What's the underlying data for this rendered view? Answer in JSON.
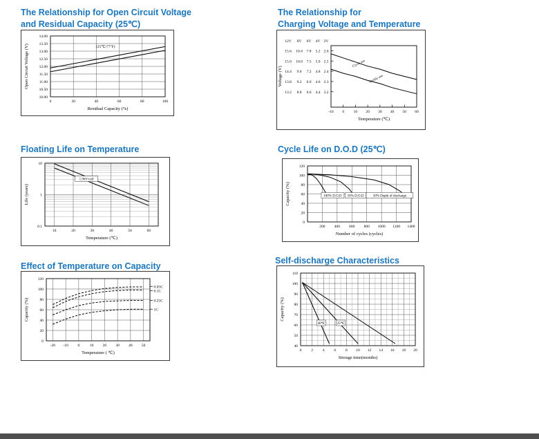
{
  "colors": {
    "title_blue": "#1b76bc",
    "footer_bar": "#4f4f4f"
  },
  "chart_data": [
    {
      "type": "line",
      "title": "The Relationship for Open Circuit Voltage",
      "title2": "and Residual Capacity (25℃)",
      "xlabel": "Residual Capacity (%)",
      "ylabel": "Open Circuit Voltage (V)",
      "xlim": [
        0,
        100
      ],
      "ylim": [
        10,
        14
      ],
      "xticks": {
        "values": [
          0,
          20,
          40,
          60,
          80,
          100
        ],
        "labels": [
          "0",
          "20",
          "40",
          "60",
          "80",
          "100"
        ]
      },
      "yticks": {
        "values": [
          14,
          13.5,
          13,
          12.5,
          12,
          11.5,
          11,
          10.5,
          10
        ],
        "labels": [
          "14.00",
          "13.50",
          "13.00",
          "12.50",
          "12.00",
          "11.50",
          "11.00",
          "10.50",
          "10.00"
        ]
      },
      "xgrid": [
        20,
        40,
        60,
        80
      ],
      "ygrid": [
        10.5,
        11,
        11.5,
        12,
        12.5,
        13,
        13.5
      ],
      "series": [
        {
          "points": [
            [
              0,
              11.9
            ],
            [
              100,
              13.3
            ]
          ]
        },
        {
          "points": [
            [
              0,
              11.65
            ],
            [
              100,
              13.05
            ]
          ]
        }
      ],
      "annotations": [
        {
          "x": 48,
          "y": 13.3,
          "text": "(25℃/77°F)",
          "fs": 5.5
        }
      ],
      "layout": {
        "margins": {
          "l": 42,
          "r": 12,
          "t": 8,
          "b": 27
        }
      }
    },
    {
      "type": "line",
      "title": "The Relationship for",
      "title2": "Charging Voltage and Temperature",
      "xlabel": "Temperature (℃)",
      "ylabel": "Voltage (V)",
      "xlim": [
        -10,
        60
      ],
      "ylim": [
        2.05,
        2.65
      ],
      "xticks": {
        "values": [
          -10,
          0,
          10,
          20,
          30,
          40,
          50,
          60
        ],
        "labels": [
          "-10",
          "0",
          "10",
          "20",
          "30",
          "40",
          "50",
          "60"
        ]
      },
      "ytable": {
        "headers": [
          "12V",
          "8V",
          "6V",
          "4V",
          "2V"
        ],
        "colx": [
          16,
          32,
          46,
          59,
          71
        ],
        "row_values": [
          2.6,
          2.5,
          2.4,
          2.3,
          2.2
        ],
        "rows": [
          [
            "15.6",
            "10.4",
            "7.8",
            "5.2",
            "2.6"
          ],
          [
            "15.0",
            "10.0",
            "7.5",
            "5.0",
            "2.5"
          ],
          [
            "14.4",
            "9.6",
            "7.2",
            "4.8",
            "2.4"
          ],
          [
            "13.8",
            "9.2",
            "6.9",
            "4.6",
            "2.3"
          ],
          [
            "13.2",
            "8.8",
            "6.6",
            "4.4",
            "2.2"
          ]
        ]
      },
      "ytick_marks": [
        2.6,
        2.5,
        2.4,
        2.3,
        2.2
      ],
      "xtick_marks": [
        0,
        10,
        20,
        30,
        40,
        50
      ],
      "series": [
        {
          "name": "Cycle use",
          "points": [
            [
              -10,
              2.57
            ],
            [
              0,
              2.53
            ],
            [
              10,
              2.49
            ],
            [
              20,
              2.45
            ],
            [
              30,
              2.42
            ],
            [
              40,
              2.38
            ],
            [
              50,
              2.35
            ],
            [
              60,
              2.32
            ]
          ]
        },
        {
          "name": "Trickle use",
          "points": [
            [
              -10,
              2.42
            ],
            [
              0,
              2.38
            ],
            [
              10,
              2.35
            ],
            [
              20,
              2.31
            ],
            [
              30,
              2.28
            ],
            [
              40,
              2.24
            ],
            [
              50,
              2.21
            ],
            [
              60,
              2.18
            ]
          ]
        }
      ],
      "annotations": [
        {
          "x": 13,
          "y": 2.48,
          "text": "Cycle use",
          "rot": -27
        },
        {
          "x": 27,
          "y": 2.33,
          "text": "Trickle use",
          "rot": -27
        }
      ],
      "layout": {
        "margins": {
          "l": 78,
          "r": 12,
          "t": 22,
          "b": 32
        },
        "ylabel_x": 6
      }
    },
    {
      "type": "line",
      "title": "Floating Life on Temperature",
      "xlabel": "Temperature (℃)",
      "ylabel": "Life (years)",
      "xlim": [
        5,
        65
      ],
      "ylim": [
        0.1,
        10
      ],
      "ylog": true,
      "xticks": {
        "values": [
          10,
          20,
          30,
          40,
          50,
          60
        ],
        "labels": [
          "10",
          "20",
          "30",
          "40",
          "50",
          "60"
        ]
      },
      "yticks": {
        "values": [
          10,
          1,
          0.1
        ],
        "labels": [
          "10",
          "1",
          "0.1"
        ]
      },
      "xgrid": [
        10,
        20,
        30,
        40,
        50,
        60
      ],
      "ygrid": [
        1
      ],
      "ygrid_minor": [
        9,
        8,
        7,
        6,
        5,
        4,
        3,
        2,
        0.9,
        0.8,
        0.7,
        0.6,
        0.5,
        0.4,
        0.3,
        0.2
      ],
      "series": [
        {
          "points": [
            [
              10,
              9.5
            ],
            [
              60,
              0.6
            ]
          ]
        },
        {
          "points": [
            [
              10,
              7
            ],
            [
              60,
              0.45
            ]
          ]
        }
      ],
      "annotations": [
        {
          "x": 27,
          "y": 3.2,
          "text": "1.96V/cell",
          "box": true
        }
      ],
      "layout": {
        "margins": {
          "l": 34,
          "r": 16,
          "t": 8,
          "b": 28
        }
      }
    },
    {
      "type": "line",
      "title": "Cycle Life on D.O.D (25℃)",
      "xlabel": "Number of cycles (cycles)",
      "ylabel": "Capacity (%)",
      "xlim": [
        0,
        1400
      ],
      "ylim": [
        0,
        120
      ],
      "xticks": {
        "values": [
          200,
          400,
          600,
          800,
          1000,
          1200,
          1400
        ],
        "labels": [
          "200",
          "400",
          "600",
          "800",
          "1000",
          "1200",
          "1400"
        ]
      },
      "yticks": {
        "values": [
          0,
          20,
          40,
          60,
          80,
          100,
          120
        ],
        "labels": [
          "0",
          "20",
          "40",
          "60",
          "80",
          "100",
          "120"
        ]
      },
      "xgrid": [
        200,
        400,
        600,
        800,
        1000,
        1200
      ],
      "ygrid": [
        20,
        40,
        60,
        80,
        100
      ],
      "series": [
        {
          "name": "100% D.O.D",
          "points": [
            [
              0,
              102
            ],
            [
              60,
              101
            ],
            [
              120,
              93
            ],
            [
              180,
              80
            ],
            [
              230,
              67
            ],
            [
              265,
              57
            ]
          ]
        },
        {
          "name": "50% D.O.D",
          "points": [
            [
              0,
              103
            ],
            [
              150,
              101
            ],
            [
              300,
              96
            ],
            [
              450,
              86
            ],
            [
              560,
              71
            ],
            [
              625,
              58
            ]
          ]
        },
        {
          "name": "30% Depth of discharge",
          "points": [
            [
              0,
              103
            ],
            [
              300,
              101
            ],
            [
              600,
              97
            ],
            [
              900,
              90
            ],
            [
              1100,
              80
            ],
            [
              1250,
              66
            ],
            [
              1310,
              58
            ]
          ]
        }
      ],
      "annotations": [
        {
          "x": 340,
          "y": 57,
          "text": "100% D.O.D",
          "box": true
        },
        {
          "x": 650,
          "y": 57,
          "text": "50% D.O.D",
          "box": true
        },
        {
          "x": 1110,
          "y": 57,
          "text": "30% Depth of discharge",
          "box": true
        }
      ],
      "layout": {
        "margins": {
          "l": 36,
          "r": 10,
          "t": 10,
          "b": 28
        }
      }
    },
    {
      "type": "line",
      "title": "Effect of Temperature on Capacity",
      "xlabel": "Temperature ( ℃)",
      "ylabel": "Capacity (%)",
      "xlim": [
        -25,
        55
      ],
      "ylim": [
        0,
        120
      ],
      "xticks": {
        "values": [
          -20,
          -10,
          0,
          10,
          20,
          30,
          40,
          50
        ],
        "labels": [
          "-20",
          "-10",
          "0",
          "10",
          "20",
          "30",
          "40",
          "50"
        ]
      },
      "yticks": {
        "values": [
          0,
          20,
          40,
          60,
          80,
          100,
          120
        ],
        "labels": [
          "0",
          "20",
          "40",
          "60",
          "80",
          "100",
          "120"
        ]
      },
      "xgrid": [
        -20,
        -10,
        0,
        10,
        20,
        30,
        40,
        50
      ],
      "ygrid": [
        20,
        40,
        60,
        80,
        100
      ],
      "series": [
        {
          "name": "0.05C",
          "dash": "3,2",
          "points": [
            [
              -20,
              70
            ],
            [
              -10,
              82
            ],
            [
              0,
              91
            ],
            [
              10,
              97
            ],
            [
              20,
              101
            ],
            [
              30,
              103
            ],
            [
              40,
              104
            ],
            [
              50,
              104
            ]
          ]
        },
        {
          "name": "0.1C",
          "dash": "3,2",
          "points": [
            [
              -20,
              64
            ],
            [
              -10,
              76
            ],
            [
              0,
              85
            ],
            [
              10,
              91
            ],
            [
              20,
              95
            ],
            [
              30,
              97
            ],
            [
              40,
              98
            ],
            [
              50,
              98
            ]
          ]
        },
        {
          "name": "0.25C",
          "dash": "3,2",
          "points": [
            [
              -20,
              50
            ],
            [
              -10,
              60
            ],
            [
              0,
              68
            ],
            [
              10,
              73
            ],
            [
              20,
              76
            ],
            [
              30,
              77
            ],
            [
              40,
              78
            ],
            [
              50,
              78
            ]
          ]
        },
        {
          "name": "1C",
          "dash": "3,2",
          "points": [
            [
              -20,
              32
            ],
            [
              -10,
              42
            ],
            [
              0,
              50
            ],
            [
              10,
              55
            ],
            [
              20,
              58
            ],
            [
              30,
              60
            ],
            [
              40,
              61
            ],
            [
              50,
              61
            ]
          ]
        }
      ],
      "right_labels": [
        {
          "y": 105,
          "text": "0.05C"
        },
        {
          "y": 97,
          "text": "0.1C"
        },
        {
          "y": 78,
          "text": "0.25C"
        },
        {
          "y": 61,
          "text": "1C"
        }
      ],
      "layout": {
        "margins": {
          "l": 36,
          "r": 28,
          "t": 10,
          "b": 28
        }
      }
    },
    {
      "type": "line",
      "title": "Self-discharge Characteristics",
      "xlabel": "Storage time(months)",
      "ylabel": "Capacity (%)",
      "xlim": [
        0,
        20
      ],
      "ylim": [
        40,
        110
      ],
      "xticks": {
        "values": [
          0,
          2,
          4,
          6,
          8,
          10,
          12,
          14,
          16,
          18,
          20
        ],
        "labels": [
          "0",
          "2",
          "4",
          "6",
          "8",
          "10",
          "12",
          "14",
          "16",
          "18",
          "20"
        ]
      },
      "yticks": {
        "values": [
          40,
          50,
          60,
          70,
          80,
          90,
          100,
          110
        ],
        "labels": [
          "40",
          "50",
          "60",
          "70",
          "80",
          "90",
          "100",
          "110"
        ]
      },
      "xgrid": [
        2,
        4,
        6,
        8,
        10,
        12,
        14,
        16,
        18
      ],
      "xgrid_minor": [
        1,
        3,
        5,
        7,
        9,
        11,
        13,
        15,
        17,
        19
      ],
      "ygrid": [
        50,
        60,
        70,
        80,
        90,
        100
      ],
      "ygrid_minor": [
        45,
        55,
        65,
        75,
        85,
        95,
        105
      ],
      "series": [
        {
          "name": "40℃",
          "points": [
            [
              0.3,
              101
            ],
            [
              5,
              42
            ]
          ]
        },
        {
          "name": "25℃",
          "points": [
            [
              0.3,
              101
            ],
            [
              10,
              42
            ]
          ]
        },
        {
          "points": [
            [
              0.3,
              101
            ],
            [
              16.5,
              42
            ]
          ]
        }
      ],
      "annotations": [
        {
          "x": 3.6,
          "y": 62,
          "text": "40℃",
          "box": true
        },
        {
          "x": 7,
          "y": 62,
          "text": "25℃",
          "box": true
        }
      ],
      "layout": {
        "margins": {
          "l": 34,
          "r": 12,
          "t": 10,
          "b": 30
        }
      }
    }
  ]
}
